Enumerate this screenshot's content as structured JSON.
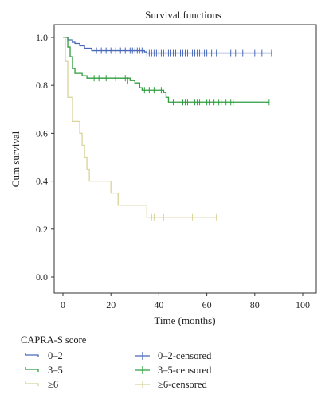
{
  "chart_data": {
    "type": "line",
    "title": "Survival functions",
    "xlabel": "Time (months)",
    "ylabel": "Cum survival",
    "xlim": [
      0,
      100
    ],
    "ylim": [
      0,
      1.0
    ],
    "x_ticks": [
      "0",
      "20",
      "40",
      "60",
      "80",
      "100"
    ],
    "y_ticks": [
      "0.0",
      "0.2",
      "0.4",
      "0.6",
      "0.8",
      "1.0"
    ],
    "legend": {
      "title": "CAPRA-S score",
      "placement": "bottom-left",
      "step_labels": [
        "0–2",
        "3–5",
        "≥6"
      ],
      "censored_labels": [
        "0–2-censored",
        "3–5-censored",
        "≥6-censored"
      ]
    },
    "series": [
      {
        "name": "0–2",
        "color": "#4a69b8",
        "steps": [
          [
            0,
            1.0
          ],
          [
            2,
            0.99
          ],
          [
            4,
            0.98
          ],
          [
            5,
            0.975
          ],
          [
            7,
            0.965
          ],
          [
            9,
            0.955
          ],
          [
            12,
            0.945
          ],
          [
            34,
            0.94
          ],
          [
            35,
            0.935
          ],
          [
            87,
            0.935
          ]
        ],
        "censored": [
          [
            14,
            0.945
          ],
          [
            16,
            0.945
          ],
          [
            18,
            0.945
          ],
          [
            20,
            0.945
          ],
          [
            22,
            0.945
          ],
          [
            24,
            0.945
          ],
          [
            26,
            0.945
          ],
          [
            28,
            0.945
          ],
          [
            29,
            0.945
          ],
          [
            30,
            0.945
          ],
          [
            31,
            0.945
          ],
          [
            32,
            0.945
          ],
          [
            33,
            0.945
          ],
          [
            35,
            0.935
          ],
          [
            36,
            0.935
          ],
          [
            37,
            0.935
          ],
          [
            38,
            0.935
          ],
          [
            39,
            0.935
          ],
          [
            40,
            0.935
          ],
          [
            41,
            0.935
          ],
          [
            42,
            0.935
          ],
          [
            43,
            0.935
          ],
          [
            44,
            0.935
          ],
          [
            45,
            0.935
          ],
          [
            46,
            0.935
          ],
          [
            47,
            0.935
          ],
          [
            48,
            0.935
          ],
          [
            49,
            0.935
          ],
          [
            50,
            0.935
          ],
          [
            51,
            0.935
          ],
          [
            52,
            0.935
          ],
          [
            53,
            0.935
          ],
          [
            54,
            0.935
          ],
          [
            55,
            0.935
          ],
          [
            56,
            0.935
          ],
          [
            57,
            0.935
          ],
          [
            58,
            0.935
          ],
          [
            59,
            0.935
          ],
          [
            60,
            0.935
          ],
          [
            62,
            0.935
          ],
          [
            64,
            0.935
          ],
          [
            70,
            0.935
          ],
          [
            72,
            0.935
          ],
          [
            75,
            0.935
          ],
          [
            80,
            0.935
          ],
          [
            83,
            0.935
          ],
          [
            87,
            0.935
          ]
        ]
      },
      {
        "name": "3–5",
        "color": "#2e9e3e",
        "steps": [
          [
            0,
            1.0
          ],
          [
            2,
            0.96
          ],
          [
            3,
            0.92
          ],
          [
            4,
            0.87
          ],
          [
            5,
            0.85
          ],
          [
            8,
            0.84
          ],
          [
            10,
            0.83
          ],
          [
            28,
            0.82
          ],
          [
            30,
            0.81
          ],
          [
            32,
            0.79
          ],
          [
            33,
            0.78
          ],
          [
            42,
            0.77
          ],
          [
            43,
            0.75
          ],
          [
            44,
            0.73
          ],
          [
            86,
            0.73
          ]
        ],
        "censored": [
          [
            13,
            0.83
          ],
          [
            15,
            0.83
          ],
          [
            18,
            0.83
          ],
          [
            22,
            0.83
          ],
          [
            26,
            0.83
          ],
          [
            27,
            0.82
          ],
          [
            34,
            0.78
          ],
          [
            36,
            0.78
          ],
          [
            38,
            0.78
          ],
          [
            41,
            0.78
          ],
          [
            46,
            0.73
          ],
          [
            48,
            0.73
          ],
          [
            50,
            0.73
          ],
          [
            51,
            0.73
          ],
          [
            52,
            0.73
          ],
          [
            53,
            0.73
          ],
          [
            55,
            0.73
          ],
          [
            56,
            0.73
          ],
          [
            57,
            0.73
          ],
          [
            58,
            0.73
          ],
          [
            60,
            0.73
          ],
          [
            61,
            0.73
          ],
          [
            63,
            0.73
          ],
          [
            65,
            0.73
          ],
          [
            66,
            0.73
          ],
          [
            68,
            0.73
          ],
          [
            70,
            0.73
          ],
          [
            71,
            0.73
          ],
          [
            86,
            0.73
          ]
        ]
      },
      {
        "name": "≥6",
        "color": "#d8d49a",
        "steps": [
          [
            0,
            1.0
          ],
          [
            1,
            0.9
          ],
          [
            2,
            0.75
          ],
          [
            4,
            0.65
          ],
          [
            7,
            0.6
          ],
          [
            8,
            0.55
          ],
          [
            9,
            0.5
          ],
          [
            10,
            0.45
          ],
          [
            11,
            0.4
          ],
          [
            20,
            0.35
          ],
          [
            23,
            0.3
          ],
          [
            35,
            0.25
          ],
          [
            64,
            0.25
          ]
        ],
        "censored": [
          [
            37,
            0.25
          ],
          [
            38,
            0.25
          ],
          [
            42,
            0.25
          ],
          [
            54,
            0.25
          ],
          [
            64,
            0.25
          ]
        ]
      }
    ]
  }
}
